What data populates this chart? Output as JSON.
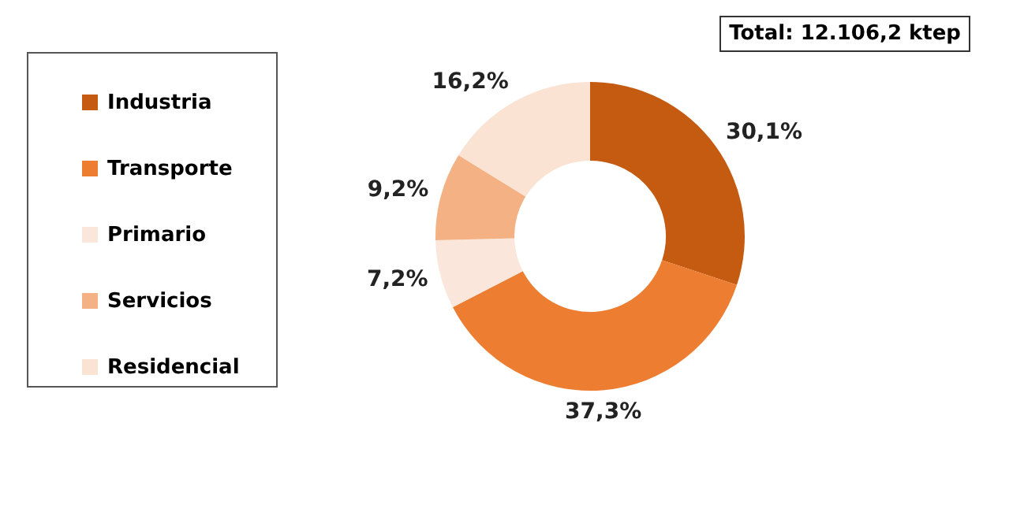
{
  "chart_data": {
    "type": "donut",
    "categories": [
      "Industria",
      "Transporte",
      "Primario",
      "Servicios",
      "Residencial"
    ],
    "values": [
      30.1,
      37.3,
      7.2,
      9.2,
      16.2
    ],
    "colors": [
      "#c55a11",
      "#ed7d31",
      "#fae6da",
      "#f4b183",
      "#fbe3d4"
    ],
    "value_labels": [
      "30,1%",
      "37,3%",
      "7,2%",
      "9,2%",
      "16,2%"
    ],
    "legend": "left",
    "annotations": [
      "Total: 12.106,2 ktep"
    ]
  }
}
